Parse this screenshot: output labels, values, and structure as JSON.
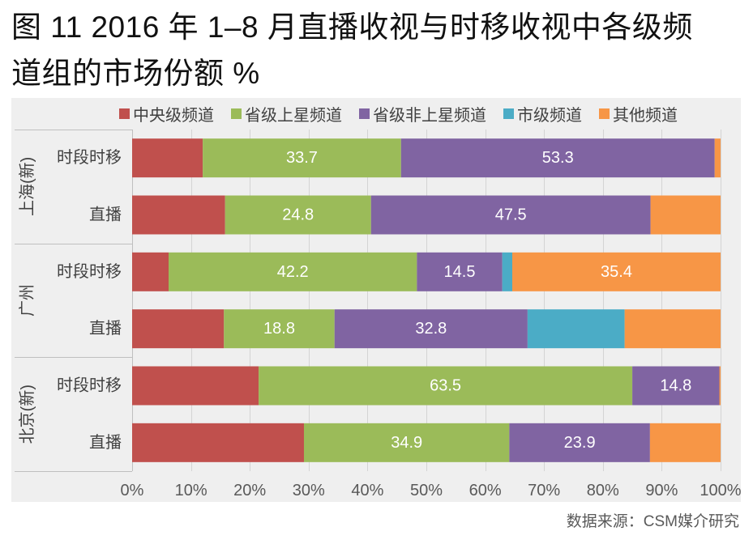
{
  "chart_data": {
    "type": "bar",
    "orientation": "horizontal",
    "stacked": true,
    "title": [
      "图 11 2016 年 1–8 月直播收视与时移收视中各级频",
      "道组的市场份额 %"
    ],
    "source": "数据来源：CSM媒介研究",
    "groups": [
      {
        "name": "上海(新)",
        "categories": [
          "时段时移",
          "直播"
        ]
      },
      {
        "name": "广州",
        "categories": [
          "时段时移",
          "直播"
        ]
      },
      {
        "name": "北京(新)",
        "categories": [
          "时段时移",
          "直播"
        ]
      }
    ],
    "series": [
      {
        "name": "中央级频道",
        "color": "#c0504d",
        "values": [
          12.0,
          15.8,
          6.2,
          15.6,
          21.5,
          29.2
        ],
        "labeled": [
          false,
          false,
          false,
          false,
          false,
          false
        ]
      },
      {
        "name": "省级上星频道",
        "color": "#9bbb59",
        "values": [
          33.7,
          24.8,
          42.2,
          18.8,
          63.5,
          34.9
        ],
        "labeled": [
          true,
          true,
          true,
          true,
          true,
          true
        ]
      },
      {
        "name": "省级非上星频道",
        "color": "#8064a2",
        "values": [
          53.3,
          47.5,
          14.5,
          32.8,
          14.8,
          23.9
        ],
        "labeled": [
          true,
          true,
          true,
          true,
          true,
          true
        ]
      },
      {
        "name": "市级频道",
        "color": "#4bacc6",
        "values": [
          0.0,
          0.0,
          1.7,
          16.5,
          0.0,
          0.0
        ],
        "labeled": [
          false,
          false,
          false,
          false,
          false,
          false
        ]
      },
      {
        "name": "其他频道",
        "color": "#f79646",
        "values": [
          1.0,
          11.9,
          35.4,
          16.3,
          0.2,
          12.0
        ],
        "labeled": [
          false,
          false,
          true,
          false,
          false,
          false
        ]
      }
    ],
    "x_ticks": [
      "0%",
      "10%",
      "20%",
      "30%",
      "40%",
      "50%",
      "60%",
      "70%",
      "80%",
      "90%",
      "100%"
    ],
    "xlim": [
      0,
      100
    ],
    "grid": true,
    "legend": "top"
  }
}
